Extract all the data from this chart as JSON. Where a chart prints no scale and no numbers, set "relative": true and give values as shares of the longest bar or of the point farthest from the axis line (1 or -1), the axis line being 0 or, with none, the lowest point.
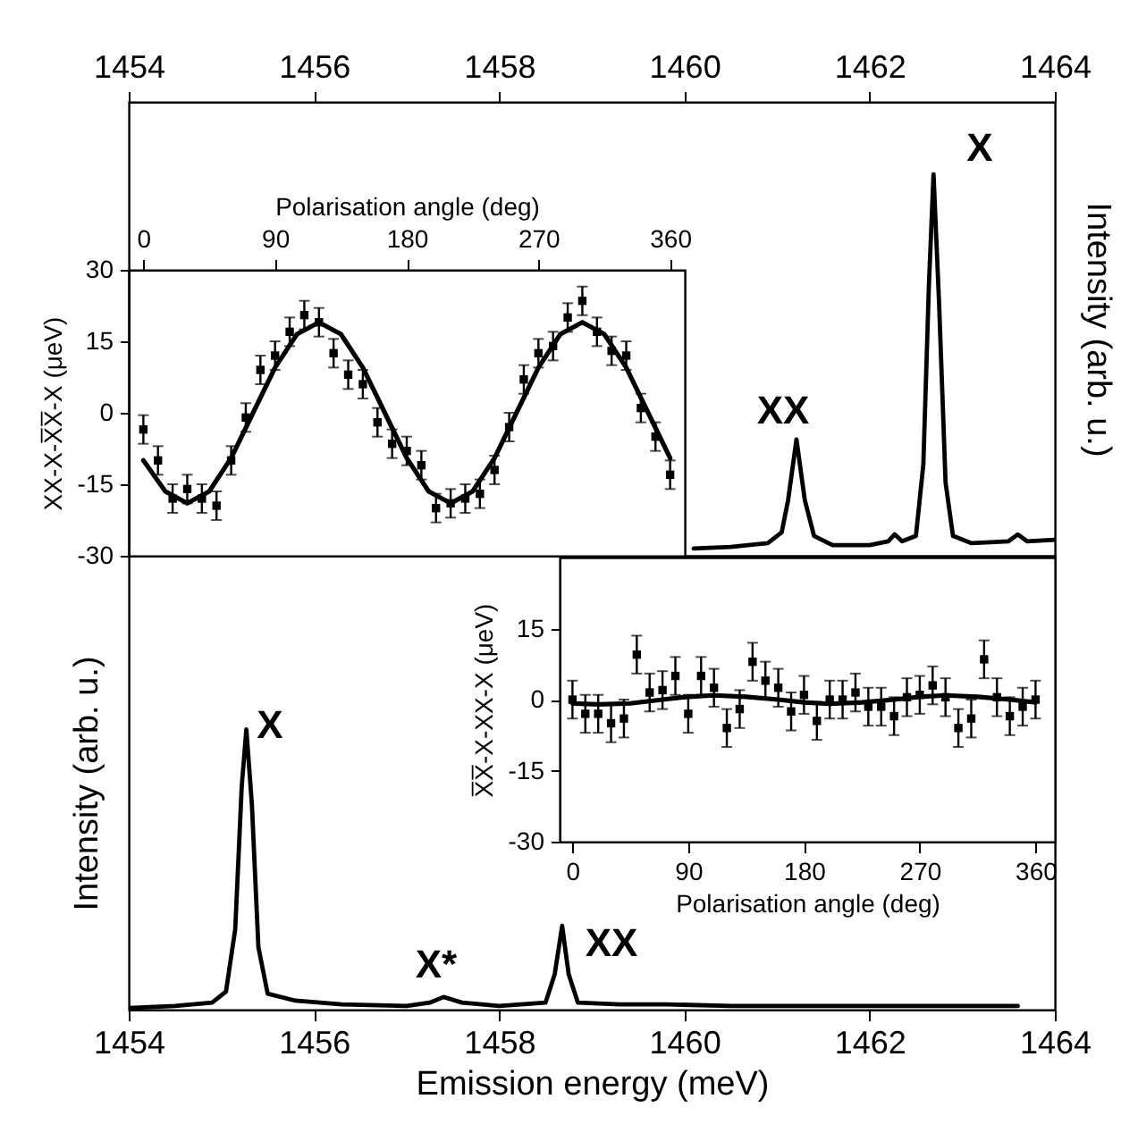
{
  "chart_data": [
    {
      "type": "line",
      "relative": true,
      "color": "#000000",
      "ylabel": "Intensity (arb. u.)",
      "tick_labels": "x",
      "xlim": [
        1454,
        1464
      ],
      "xticks": [
        1454,
        1456,
        1458,
        1460,
        1462,
        1464
      ],
      "x": [
        1460.1,
        1460.5,
        1460.9,
        1461.05,
        1461.12,
        1461.21,
        1461.3,
        1461.4,
        1461.6,
        1462.0,
        1462.2,
        1462.27,
        1462.35,
        1462.5,
        1462.58,
        1462.64,
        1462.69,
        1462.75,
        1462.82,
        1462.9,
        1463.1,
        1463.5,
        1463.6,
        1463.7,
        1464.0
      ],
      "values": [
        0.019,
        0.023,
        0.033,
        0.061,
        0.146,
        0.305,
        0.146,
        0.052,
        0.028,
        0.028,
        0.038,
        0.056,
        0.038,
        0.052,
        0.239,
        0.709,
        1,
        0.662,
        0.192,
        0.052,
        0.033,
        0.038,
        0.056,
        0.038,
        0.042
      ],
      "annotations": [
        "XX",
        "X"
      ]
    },
    {
      "type": "line",
      "relative": true,
      "color": "#000000",
      "xlabel": "Emission energy (meV)",
      "ylabel": "Intensity (arb. u.)",
      "tick_labels": "x",
      "xlim": [
        1454,
        1464
      ],
      "xticks": [
        1454,
        1456,
        1458,
        1460,
        1462,
        1464
      ],
      "x": [
        1454.0,
        1454.5,
        1454.9,
        1455.05,
        1455.15,
        1455.22,
        1455.27,
        1455.33,
        1455.4,
        1455.5,
        1455.8,
        1456.3,
        1457.0,
        1457.25,
        1457.4,
        1457.6,
        1458.0,
        1458.5,
        1458.6,
        1458.68,
        1458.75,
        1458.85,
        1459.3,
        1459.8,
        1460.5,
        1461.5,
        1462.5,
        1463.6
      ],
      "values": [
        0.006,
        0.013,
        0.025,
        0.064,
        0.287,
        0.796,
        1,
        0.732,
        0.223,
        0.057,
        0.032,
        0.019,
        0.013,
        0.025,
        0.045,
        0.025,
        0.013,
        0.025,
        0.127,
        0.299,
        0.127,
        0.025,
        0.019,
        0.019,
        0.013,
        0.013,
        0.013,
        0.013
      ],
      "annotations": [
        "X",
        "X*",
        "XX"
      ]
    },
    {
      "type": "scatter",
      "xlabel": "Polarisation angle (deg)",
      "ylabel": "XX-X-X̅X̅-X (μeV)",
      "xlim": [
        -10,
        370
      ],
      "ylim": [
        -30,
        30
      ],
      "xticks": [
        0,
        90,
        180,
        270,
        360
      ],
      "yticks": [
        -30,
        -15,
        0,
        15,
        30
      ],
      "series": [
        {
          "marker": "square",
          "color": "#000000",
          "x": [
            0,
            10,
            20,
            30,
            40,
            50,
            60,
            70,
            80,
            90,
            100,
            110,
            120,
            130,
            140,
            150,
            160,
            170,
            180,
            190,
            200,
            210,
            220,
            230,
            240,
            250,
            260,
            270,
            280,
            290,
            300,
            310,
            320,
            330,
            340,
            350,
            360
          ],
          "values": [
            -3.5,
            -10,
            -18,
            -16,
            -18,
            -19.5,
            -10,
            -1,
            9,
            12,
            17,
            20.5,
            19,
            12.5,
            8,
            6,
            -2,
            -6.5,
            -8,
            -11,
            -20,
            -19,
            -18,
            -17,
            -12,
            -3,
            7,
            12.5,
            14,
            20,
            23.5,
            17,
            13,
            12,
            1,
            -5,
            -13
          ],
          "errors": [
            3,
            3,
            3,
            3,
            3,
            3,
            3,
            3,
            3,
            3,
            3,
            3,
            3,
            3,
            3,
            3,
            3,
            3,
            3,
            3,
            3,
            3,
            3,
            3,
            3,
            3,
            3,
            3,
            3,
            3,
            3,
            3,
            3,
            3,
            3,
            3,
            3
          ]
        },
        {
          "type": "line",
          "color": "#000000",
          "x": [
            0,
            15,
            30,
            45,
            60,
            75,
            90,
            105,
            120,
            135,
            150,
            165,
            180,
            195,
            210,
            225,
            240,
            255,
            270,
            285,
            300,
            315,
            330,
            345,
            360
          ],
          "values": [
            -10,
            -16.5,
            -19,
            -16.5,
            -9.5,
            0,
            9.5,
            16.5,
            19,
            16.5,
            9.5,
            0,
            -9.5,
            -16.5,
            -19,
            -16.5,
            -9.5,
            0,
            9.5,
            16.5,
            19,
            16.5,
            9.5,
            0,
            -9.5
          ]
        }
      ]
    },
    {
      "type": "scatter",
      "xlabel": "Polarisation angle (deg)",
      "ylabel": "X̅X̅-X-XX-X (μeV)",
      "xlim": [
        -10,
        375
      ],
      "ylim": [
        -30,
        30
      ],
      "xticks": [
        0,
        90,
        180,
        270,
        360
      ],
      "yticks": [
        -30,
        -15,
        0,
        15
      ],
      "series": [
        {
          "marker": "square",
          "color": "#000000",
          "x": [
            0,
            10,
            20,
            30,
            40,
            50,
            60,
            70,
            80,
            90,
            100,
            110,
            120,
            130,
            140,
            150,
            160,
            170,
            180,
            190,
            200,
            210,
            220,
            230,
            240,
            250,
            260,
            270,
            280,
            290,
            300,
            310,
            320,
            330,
            340,
            350,
            360
          ],
          "values": [
            0,
            -3,
            -3,
            -5,
            -4,
            9.5,
            1.5,
            2,
            5,
            -3,
            5,
            2.5,
            -6,
            -2,
            8,
            4,
            2.5,
            -2.5,
            1,
            -4.5,
            0,
            0,
            1.5,
            -1.5,
            -1.5,
            -3.5,
            0.5,
            1,
            3,
            0.5,
            -6,
            -4,
            8.5,
            0.5,
            -3.5,
            -1.5,
            0
          ],
          "errors": [
            4,
            4,
            4,
            4,
            4,
            4,
            4,
            4,
            4,
            4,
            4,
            4,
            4,
            4,
            4,
            4,
            4,
            4,
            4,
            4,
            4,
            4,
            4,
            4,
            4,
            4,
            4,
            4,
            4,
            4,
            4,
            4,
            4,
            4,
            4,
            4,
            4
          ]
        },
        {
          "type": "line",
          "color": "#000000",
          "x": [
            0,
            20,
            45,
            70,
            90,
            110,
            135,
            160,
            180,
            200,
            225,
            250,
            270,
            290,
            315,
            340,
            360
          ],
          "values": [
            -0.8,
            -1,
            -0.8,
            0,
            0.6,
            0.9,
            0.6,
            0,
            -0.6,
            -0.9,
            -0.6,
            0,
            0.6,
            0.9,
            0.6,
            0,
            -0.6
          ]
        }
      ]
    }
  ]
}
